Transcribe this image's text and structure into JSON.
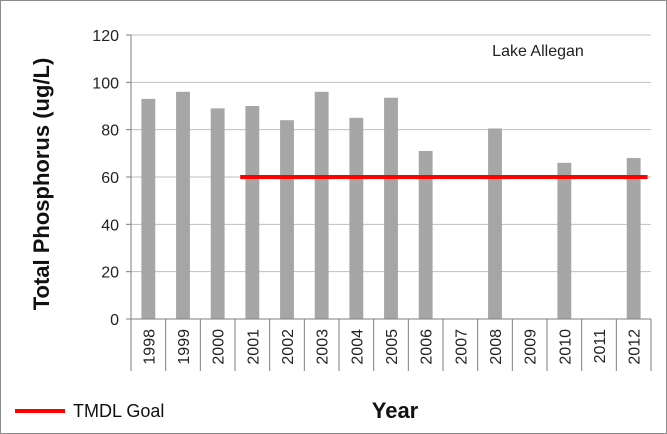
{
  "chart_data": {
    "type": "bar",
    "categories": [
      "1998",
      "1999",
      "2000",
      "2001",
      "2002",
      "2003",
      "2004",
      "2005",
      "2006",
      "2007",
      "2008",
      "2009",
      "2010",
      "2011",
      "2012"
    ],
    "series": [
      {
        "values": [
          93,
          96,
          89,
          90,
          84,
          96,
          85,
          93.5,
          71,
          null,
          80.5,
          null,
          66,
          null,
          68
        ],
        "color": "#a6a6a6"
      }
    ],
    "goal": {
      "name": "TMDL Goal",
      "color": "#ff0000",
      "x_start": "2001",
      "x_end": "2012",
      "values": [
        60,
        60
      ]
    },
    "annotation": "Lake Allegan",
    "xlabel": "Year",
    "ylabel": "Total Phosphorus (ug/L)",
    "ylim": [
      0,
      120
    ],
    "yticks": [
      0,
      20,
      40,
      60,
      80,
      100,
      120
    ],
    "grid": true,
    "legend": "bottom-left"
  }
}
